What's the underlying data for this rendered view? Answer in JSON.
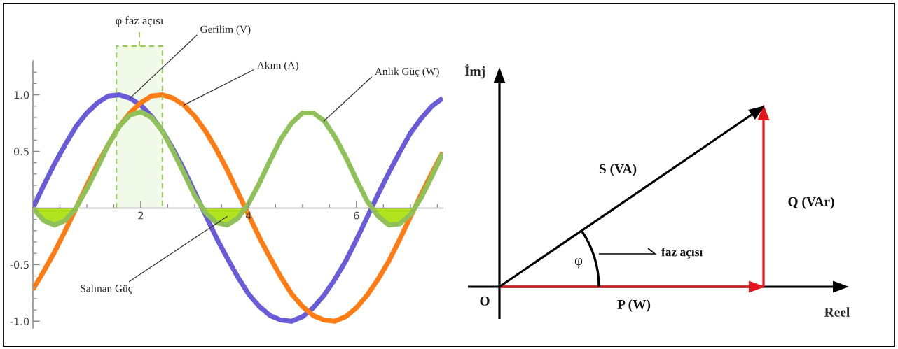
{
  "chart_data": [
    {
      "type": "line",
      "x": [
        0,
        0.2,
        0.4,
        0.6,
        0.8,
        1,
        1.2,
        1.4,
        1.6,
        1.8,
        2,
        2.2,
        2.4,
        2.6,
        2.8,
        3,
        3.2,
        3.4,
        3.6,
        3.8,
        4,
        4.2,
        4.4,
        4.6,
        4.8,
        5,
        5.2,
        5.4,
        5.6,
        5.8,
        6,
        6.2,
        6.4,
        6.6,
        6.8,
        7,
        7.2,
        7.4,
        7.6
      ],
      "series": [
        {
          "name": "Gerilim (V)",
          "color": "#6a5bd8",
          "values": [
            0,
            0.2,
            0.39,
            0.56,
            0.72,
            0.84,
            0.93,
            0.99,
            1.0,
            0.97,
            0.91,
            0.81,
            0.68,
            0.52,
            0.34,
            0.14,
            -0.06,
            -0.26,
            -0.44,
            -0.61,
            -0.76,
            -0.87,
            -0.95,
            -0.99,
            -1.0,
            -0.96,
            -0.88,
            -0.77,
            -0.63,
            -0.47,
            -0.28,
            -0.08,
            0.12,
            0.31,
            0.49,
            0.66,
            0.79,
            0.9,
            0.97
          ]
        },
        {
          "name": "Akım (A)",
          "color": "#ff7b13",
          "values": [
            -0.72,
            -0.56,
            -0.39,
            -0.2,
            0,
            0.2,
            0.39,
            0.56,
            0.72,
            0.84,
            0.93,
            0.99,
            1.0,
            0.97,
            0.91,
            0.81,
            0.68,
            0.52,
            0.34,
            0.14,
            -0.06,
            -0.26,
            -0.44,
            -0.61,
            -0.76,
            -0.87,
            -0.95,
            -0.99,
            -1.0,
            -0.96,
            -0.88,
            -0.77,
            -0.63,
            -0.47,
            -0.28,
            -0.08,
            0.12,
            0.31,
            0.49
          ]
        },
        {
          "name": "Anlık Güç (W)",
          "color": "#8fc158",
          "values": [
            0,
            -0.11,
            -0.15,
            -0.11,
            0,
            0.17,
            0.36,
            0.56,
            0.72,
            0.82,
            0.85,
            0.8,
            0.68,
            0.5,
            0.31,
            0.11,
            -0.04,
            -0.13,
            -0.15,
            -0.09,
            0.04,
            0.22,
            0.42,
            0.61,
            0.75,
            0.84,
            0.84,
            0.77,
            0.63,
            0.45,
            0.25,
            0.06,
            -0.07,
            -0.15,
            -0.14,
            -0.06,
            0.09,
            0.28,
            0.48
          ]
        },
        {
          "name": "Salınan Güç",
          "type": "area",
          "color": "#b2e31f",
          "x": [
            0,
            0.2,
            0.4,
            0.6,
            0.8,
            2,
            3.14,
            3.2,
            3.4,
            3.6,
            3.8,
            3.94,
            5,
            6.28,
            6.4,
            6.6,
            6.8,
            7,
            7.08
          ],
          "values": [
            0,
            -0.11,
            -0.15,
            -0.11,
            0,
            null,
            0,
            -0.04,
            -0.13,
            -0.15,
            -0.09,
            0,
            null,
            0,
            -0.07,
            -0.15,
            -0.14,
            -0.06,
            0
          ]
        }
      ],
      "xlim": [
        0,
        7.6
      ],
      "ylim": [
        -1.06,
        1.3
      ],
      "xticks": [
        {
          "value": 0.5,
          "label": null
        },
        {
          "value": 1,
          "label": null
        },
        {
          "value": 1.5,
          "label": null
        },
        2,
        {
          "value": 2.5,
          "label": null
        },
        {
          "value": 3,
          "label": null
        },
        {
          "value": 3.5,
          "label": null
        },
        4,
        {
          "value": 4.5,
          "label": null
        },
        {
          "value": 5,
          "label": null
        },
        {
          "value": 5.5,
          "label": null
        },
        6,
        {
          "value": 6.5,
          "label": null
        },
        {
          "value": 7,
          "label": null
        },
        {
          "value": 7.5,
          "label": null
        }
      ],
      "yticks": [
        {
          "value": -1,
          "label": "-1.0"
        },
        {
          "value": -0.9,
          "label": null
        },
        {
          "value": -0.8,
          "label": null
        },
        {
          "value": -0.7,
          "label": null
        },
        {
          "value": -0.6,
          "label": null
        },
        {
          "value": -0.5,
          "label": "-0.5"
        },
        {
          "value": -0.4,
          "label": null
        },
        {
          "value": -0.3,
          "label": null
        },
        {
          "value": -0.2,
          "label": null
        },
        {
          "value": -0.1,
          "label": null
        },
        {
          "value": 0.1,
          "label": null
        },
        {
          "value": 0.2,
          "label": null
        },
        {
          "value": 0.3,
          "label": null
        },
        {
          "value": 0.4,
          "label": null
        },
        {
          "value": 0.5,
          "label": "0.5"
        },
        {
          "value": 0.6,
          "label": null
        },
        {
          "value": 0.7,
          "label": null
        },
        {
          "value": 0.8,
          "label": null
        },
        {
          "value": 0.9,
          "label": null
        },
        {
          "value": 1,
          "label": "1.0"
        },
        {
          "value": 1.1,
          "label": null
        },
        {
          "value": 1.2,
          "label": null
        }
      ],
      "bands": [
        {
          "axis": "x",
          "from": 1.55,
          "to": 2.4,
          "label": "φ faz açısı",
          "color": "#8fd14f"
        }
      ]
    },
    {
      "type": "other",
      "xlabel": "Reel",
      "ylabel": "İmj",
      "annotations": [
        "O",
        "S (VA)",
        "Q (VAr)",
        "P (W)",
        "φ",
        "faz açısı"
      ]
    }
  ]
}
